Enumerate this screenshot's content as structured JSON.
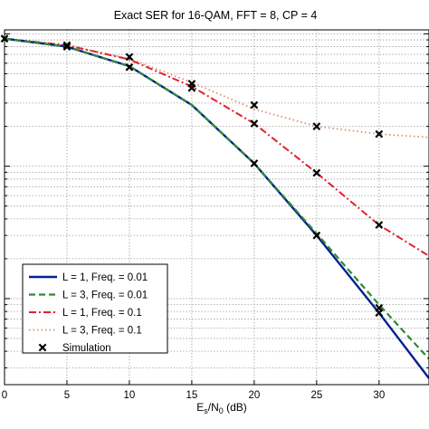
{
  "chart_data": {
    "type": "line",
    "title": "Exact SER for 16-QAM, FFT = 8, CP = 4",
    "xlabel": {
      "main": "E",
      "sub1": "s",
      "mid": "/N",
      "sub2": "0",
      "tail": " (dB)"
    },
    "ylabel": "",
    "x_ticks": [
      "0",
      "5",
      "10",
      "15",
      "20",
      "25",
      "30"
    ],
    "xlim": [
      0,
      34
    ],
    "ylim_log10": [
      -2.65,
      0.03
    ],
    "y_scale": "log",
    "grid": true,
    "legend_position": "bottom-left",
    "series": [
      {
        "name": "L = 1, Freq. = 0.01",
        "color": "#00208f",
        "dash": "solid",
        "x": [
          0,
          5,
          10,
          15,
          20,
          25,
          30,
          34
        ],
        "y": [
          0.92,
          0.8,
          0.57,
          0.29,
          0.105,
          0.03,
          0.0078,
          0.0025
        ]
      },
      {
        "name": "L = 3, Freq. = 0.01",
        "color": "#2e8b2e",
        "dash": "dashed",
        "x": [
          0,
          5,
          10,
          15,
          20,
          25,
          30,
          34
        ],
        "y": [
          0.92,
          0.8,
          0.57,
          0.29,
          0.105,
          0.031,
          0.009,
          0.0035
        ]
      },
      {
        "name": "L = 1, Freq. = 0.1",
        "color": "#e0202c",
        "dash": "dashdot",
        "x": [
          0,
          5,
          10,
          15,
          20,
          25,
          30,
          34
        ],
        "y": [
          0.92,
          0.82,
          0.64,
          0.4,
          0.21,
          0.089,
          0.036,
          0.021
        ]
      },
      {
        "name": "L = 3, Freq. = 0.1",
        "color": "#d8926c",
        "dash": "dotted",
        "x": [
          0,
          5,
          10,
          15,
          20,
          25,
          30,
          34
        ],
        "y": [
          0.92,
          0.82,
          0.65,
          0.43,
          0.27,
          0.2,
          0.175,
          0.165
        ]
      }
    ],
    "simulation": {
      "name": "Simulation",
      "points": [
        [
          0,
          0.92
        ],
        [
          5,
          0.8
        ],
        [
          5,
          0.82
        ],
        [
          10,
          0.56
        ],
        [
          10,
          0.67
        ],
        [
          15,
          0.42
        ],
        [
          15,
          0.39
        ],
        [
          20,
          0.105
        ],
        [
          20,
          0.29
        ],
        [
          20,
          0.21
        ],
        [
          25,
          0.03
        ],
        [
          25,
          0.089
        ],
        [
          25,
          0.2
        ],
        [
          30,
          0.0085
        ],
        [
          30,
          0.0078
        ],
        [
          30,
          0.036
        ],
        [
          30,
          0.175
        ]
      ]
    }
  }
}
